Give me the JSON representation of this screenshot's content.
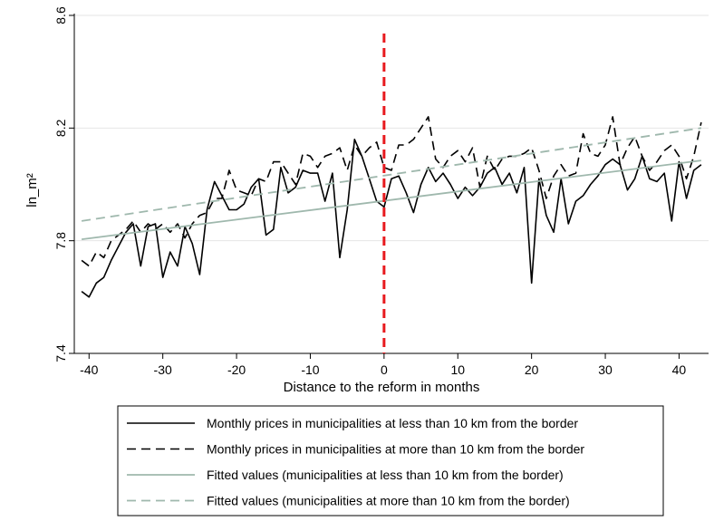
{
  "chart_data": {
    "type": "line",
    "xlabel": "Distance to the reform in months",
    "ylabel": "ln_m²",
    "xlim": [
      -42,
      44
    ],
    "ylim": [
      7.4,
      8.6
    ],
    "x_ticks": [
      -40,
      -30,
      -20,
      -10,
      0,
      10,
      20,
      30,
      40
    ],
    "y_ticks": [
      7.4,
      7.8,
      8.2,
      8.6
    ],
    "grid": true,
    "legend_position": "bottom",
    "reference_line": {
      "x": 0,
      "color": "#e8191e",
      "style": "dashed"
    },
    "series": [
      {
        "name": "Monthly prices in municipalities at less than 10 km from the border",
        "color": "#000000",
        "style": "solid",
        "x": [
          -41,
          -40,
          -39,
          -38,
          -37,
          -36,
          -35,
          -34,
          -33,
          -32,
          -31,
          -30,
          -29,
          -28,
          -27,
          -26,
          -25,
          -24,
          -23,
          -22,
          -21,
          -20,
          -19,
          -18,
          -17,
          -16,
          -15,
          -14,
          -13,
          -12,
          -11,
          -10,
          -9,
          -8,
          -7,
          -6,
          -5,
          -4,
          -3,
          -2,
          -1,
          0,
          1,
          2,
          3,
          4,
          5,
          6,
          7,
          8,
          9,
          10,
          11,
          12,
          13,
          14,
          15,
          16,
          17,
          18,
          19,
          20,
          21,
          22,
          23,
          24,
          25,
          26,
          27,
          28,
          29,
          30,
          31,
          32,
          33,
          34,
          35,
          36,
          37,
          38,
          39,
          40,
          41,
          42,
          43
        ],
        "values": [
          7.62,
          7.6,
          7.65,
          7.67,
          7.73,
          7.78,
          7.83,
          7.86,
          7.71,
          7.85,
          7.86,
          7.67,
          7.76,
          7.71,
          7.85,
          7.79,
          7.68,
          7.91,
          8.01,
          7.96,
          7.91,
          7.91,
          7.93,
          7.99,
          8.02,
          7.82,
          7.84,
          8.06,
          7.97,
          7.99,
          8.05,
          8.04,
          8.04,
          7.94,
          8.04,
          7.74,
          7.91,
          8.16,
          8.1,
          8.02,
          7.94,
          7.92,
          8.02,
          8.03,
          7.97,
          7.9,
          8.0,
          8.06,
          8.01,
          8.04,
          8.0,
          7.95,
          7.99,
          7.96,
          7.99,
          8.04,
          8.06,
          8.0,
          8.04,
          7.97,
          8.06,
          7.65,
          8.02,
          7.89,
          7.83,
          8.02,
          7.86,
          7.94,
          7.96,
          8.0,
          8.03,
          8.07,
          8.09,
          8.07,
          7.98,
          8.02,
          8.1,
          8.02,
          8.01,
          8.04,
          7.87,
          8.08,
          7.95,
          8.05,
          8.07
        ]
      },
      {
        "name": "Monthly prices in municipalities at more than 10 km from the border",
        "color": "#000000",
        "style": "dashed",
        "x": [
          -41,
          -40,
          -39,
          -38,
          -37,
          -36,
          -35,
          -34,
          -33,
          -32,
          -31,
          -30,
          -29,
          -28,
          -27,
          -26,
          -25,
          -24,
          -23,
          -22,
          -21,
          -20,
          -19,
          -18,
          -17,
          -16,
          -15,
          -14,
          -13,
          -12,
          -11,
          -10,
          -9,
          -8,
          -7,
          -6,
          -5,
          -4,
          -3,
          -2,
          -1,
          0,
          1,
          2,
          3,
          4,
          5,
          6,
          7,
          8,
          9,
          10,
          11,
          12,
          13,
          14,
          15,
          16,
          17,
          18,
          19,
          20,
          21,
          22,
          23,
          24,
          25,
          26,
          27,
          28,
          29,
          30,
          31,
          32,
          33,
          34,
          35,
          36,
          37,
          38,
          39,
          40,
          41,
          42,
          43
        ],
        "values": [
          7.73,
          7.71,
          7.76,
          7.74,
          7.8,
          7.82,
          7.84,
          7.87,
          7.83,
          7.86,
          7.84,
          7.86,
          7.83,
          7.86,
          7.81,
          7.86,
          7.89,
          7.9,
          7.95,
          7.95,
          8.05,
          7.98,
          7.97,
          7.96,
          8.02,
          8.01,
          8.08,
          8.08,
          8.04,
          8.0,
          8.11,
          8.1,
          8.06,
          8.1,
          8.11,
          8.13,
          8.05,
          8.14,
          8.1,
          8.13,
          8.15,
          8.06,
          8.05,
          8.14,
          8.14,
          8.16,
          8.2,
          8.24,
          8.09,
          8.06,
          8.1,
          8.12,
          8.08,
          8.13,
          7.99,
          8.1,
          8.05,
          8.09,
          8.1,
          8.1,
          8.11,
          8.13,
          8.05,
          7.95,
          8.03,
          8.07,
          8.03,
          8.04,
          8.18,
          8.11,
          8.1,
          8.14,
          8.24,
          8.07,
          8.13,
          8.17,
          8.1,
          8.05,
          8.08,
          8.12,
          8.14,
          8.1,
          8.02,
          8.1,
          8.22
        ]
      },
      {
        "name": "Fitted values (municipalities at less than 10 km from the border)",
        "color": "#9fb8ad",
        "style": "solid",
        "x": [
          -41,
          43
        ],
        "values": [
          7.805,
          8.085
        ]
      },
      {
        "name": "Fitted values (municipalities at more than 10 km from the border)",
        "color": "#9fb8ad",
        "style": "dashed",
        "x": [
          -41,
          43
        ],
        "values": [
          7.87,
          8.2
        ]
      }
    ]
  }
}
